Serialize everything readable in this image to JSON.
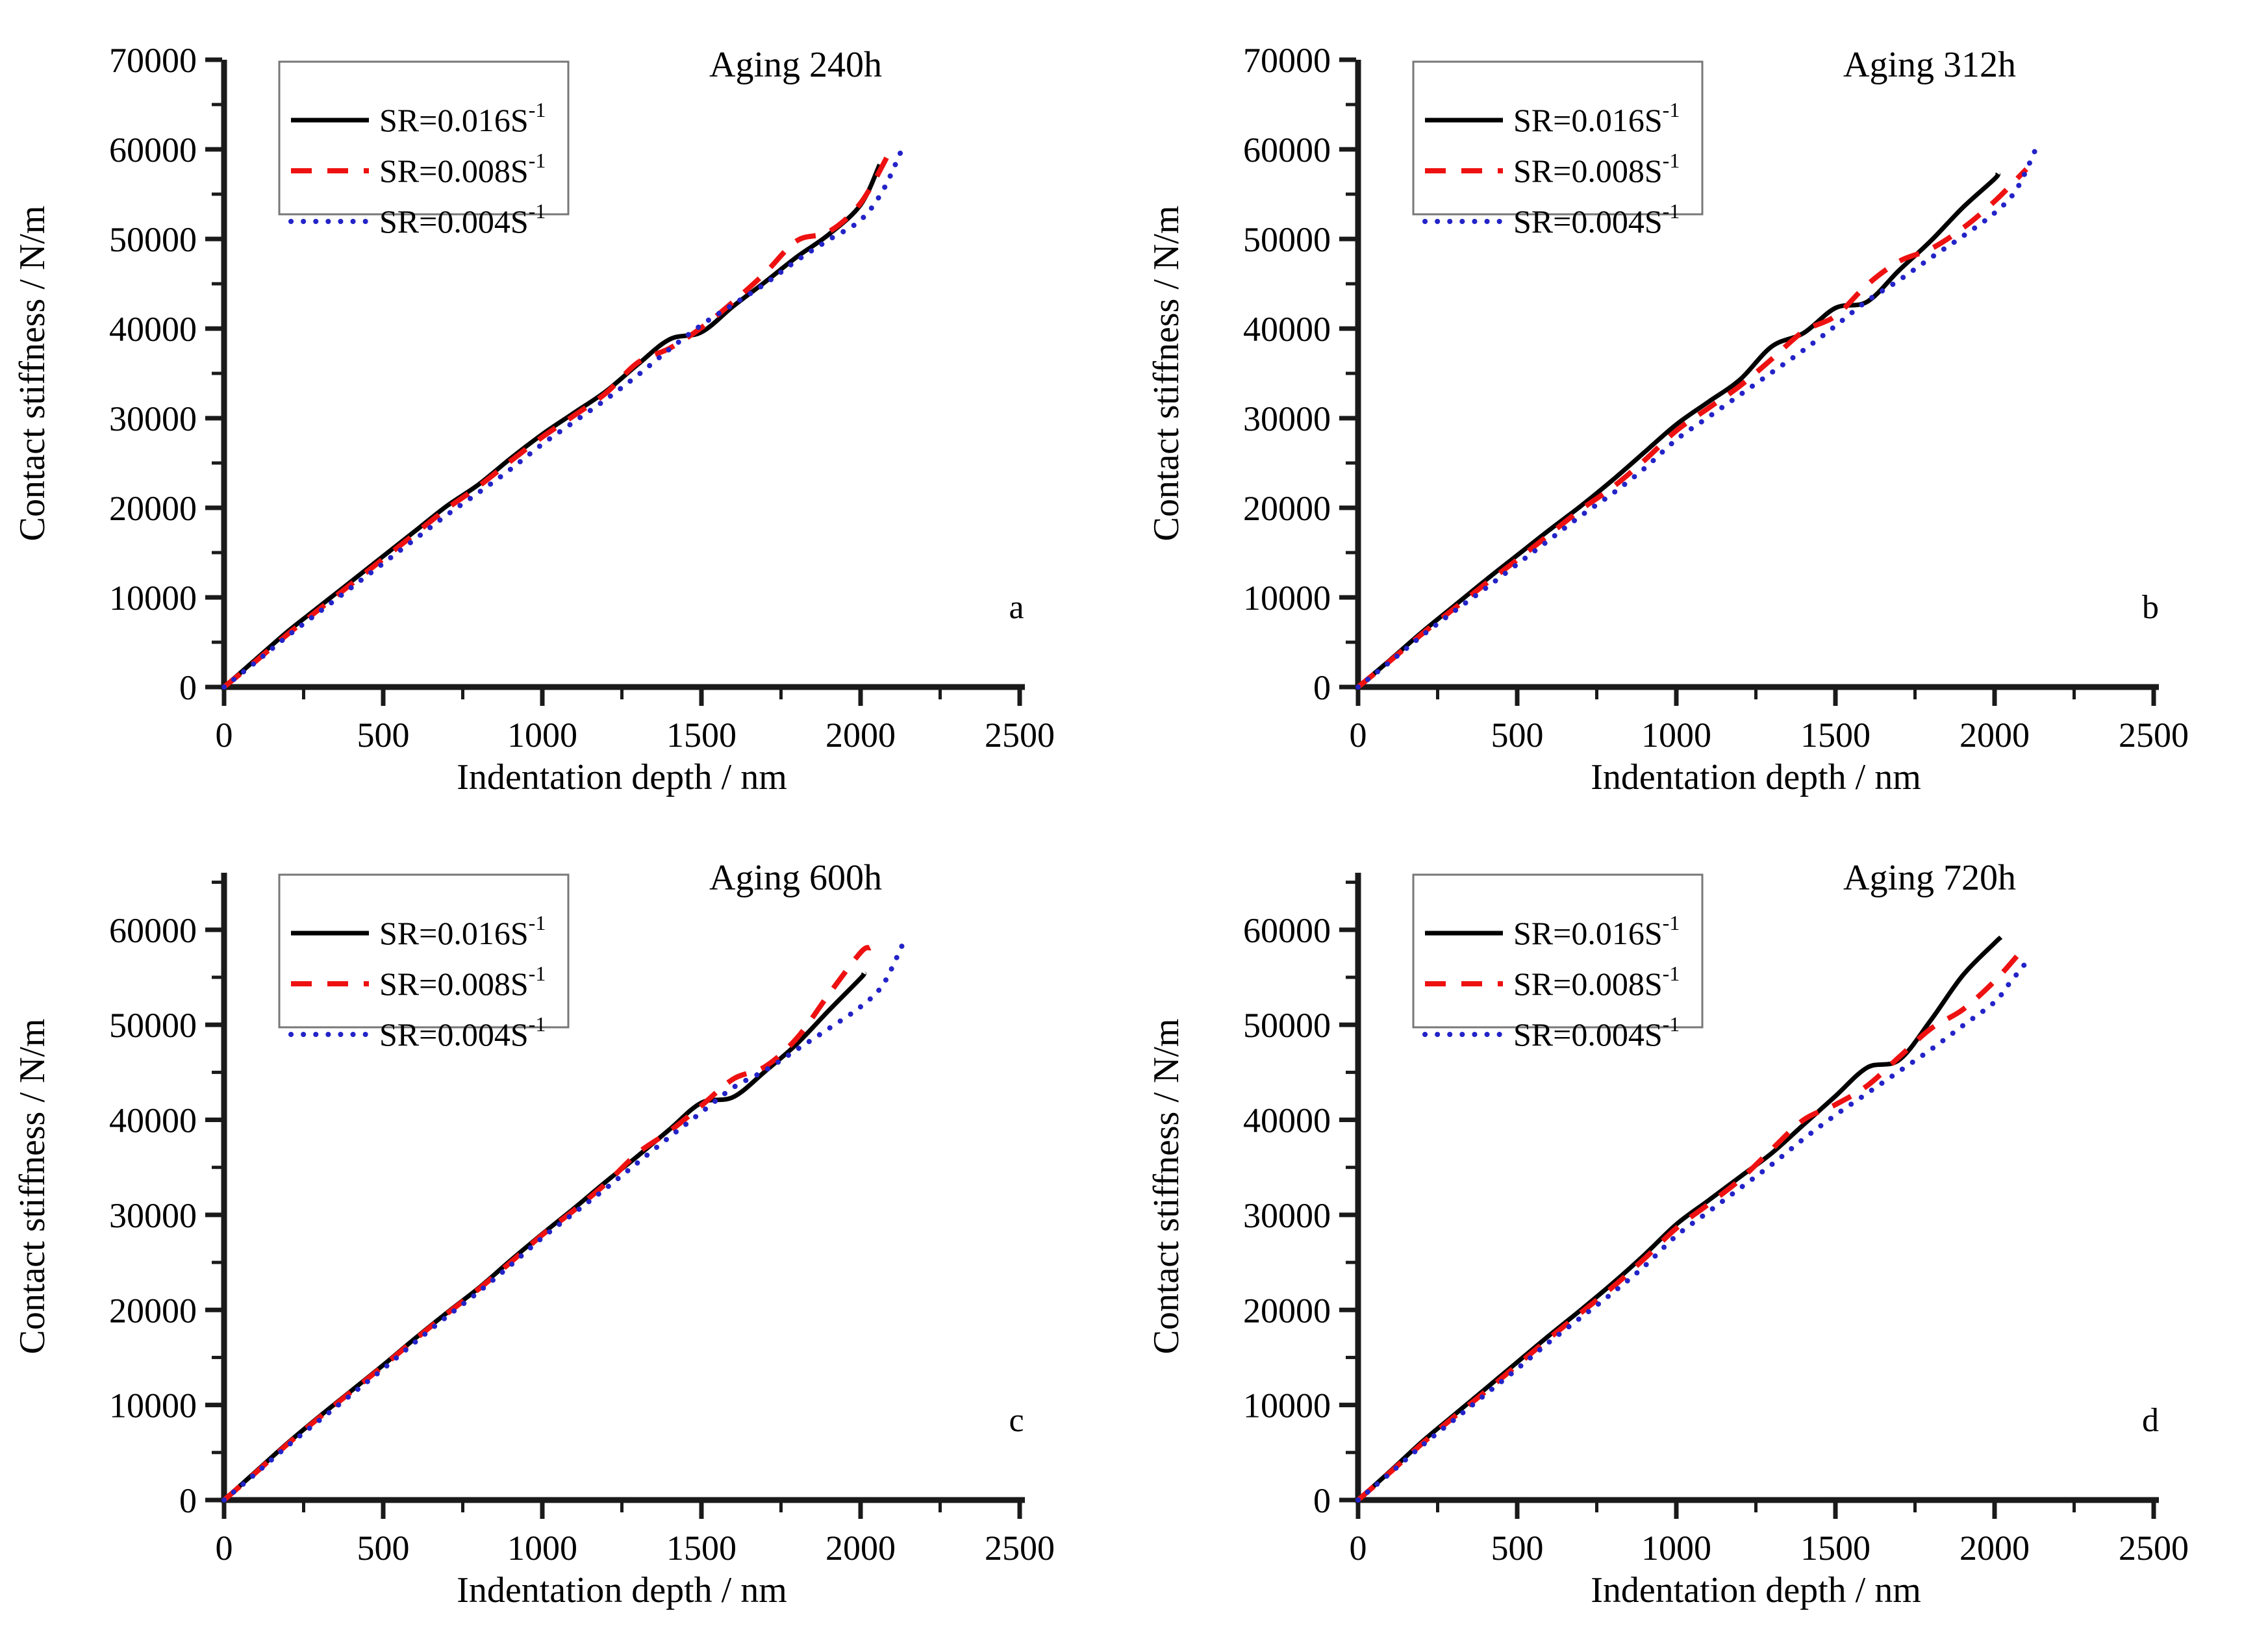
{
  "figure": {
    "background": "#ffffff",
    "axis_color": "#1a1a1a",
    "legend_border_color": "#777777"
  },
  "chart_data": [
    {
      "id": "a",
      "type": "line",
      "title": "Aging 240h",
      "panel_letter": "a",
      "xlabel": "Indentation depth / nm",
      "ylabel": "Contact stiffness / N/m",
      "xlim": [
        0,
        2500
      ],
      "ylim": [
        0,
        70000
      ],
      "x_major_step": 500,
      "x_minor_step": 250,
      "y_major_step": 10000,
      "y_minor_step": 5000,
      "y_label_max": 70000,
      "grid": false,
      "legend_position": "top-left",
      "series": [
        {
          "name": "SR=0.016S⁻¹",
          "label_base": "SR=0.016S",
          "label_sup": "-1",
          "color": "#000000",
          "line_style": "solid",
          "x": [
            0,
            100,
            200,
            300,
            400,
            500,
            600,
            700,
            800,
            900,
            1000,
            1100,
            1200,
            1300,
            1400,
            1500,
            1600,
            1700,
            1800,
            1900,
            2000,
            2060
          ],
          "y": [
            0,
            3100,
            6200,
            9000,
            11800,
            14600,
            17400,
            20200,
            22600,
            25500,
            28200,
            30600,
            33000,
            36000,
            38800,
            39600,
            42500,
            45200,
            48000,
            50500,
            53800,
            58300
          ]
        },
        {
          "name": "SR=0.008S⁻¹",
          "label_base": "SR=0.008S",
          "label_sup": "-1",
          "color": "#ee1111",
          "line_style": "dashed",
          "x": [
            0,
            100,
            200,
            300,
            400,
            500,
            600,
            700,
            800,
            900,
            1000,
            1100,
            1200,
            1300,
            1400,
            1500,
            1600,
            1700,
            1800,
            1900,
            2000,
            2090
          ],
          "y": [
            0,
            2900,
            5900,
            8700,
            11500,
            14300,
            17100,
            19900,
            22400,
            25200,
            27900,
            30300,
            32800,
            36200,
            37800,
            40100,
            43000,
            46200,
            49800,
            50800,
            54000,
            59600
          ]
        },
        {
          "name": "SR=0.004S⁻¹",
          "label_base": "SR=0.004S",
          "label_sup": "-1",
          "color": "#2323c8",
          "line_style": "dotted",
          "x": [
            0,
            100,
            200,
            300,
            400,
            500,
            600,
            700,
            800,
            900,
            1000,
            1100,
            1200,
            1300,
            1400,
            1500,
            1600,
            1700,
            1800,
            1900,
            2000,
            2070,
            2130
          ],
          "y": [
            0,
            2800,
            5700,
            8400,
            11100,
            13800,
            16500,
            19200,
            21700,
            24300,
            27100,
            29600,
            32100,
            34800,
            37700,
            40400,
            42700,
            45000,
            47600,
            49900,
            52100,
            55400,
            60000
          ]
        }
      ]
    },
    {
      "id": "b",
      "type": "line",
      "title": "Aging 312h",
      "panel_letter": "b",
      "xlabel": "Indentation depth / nm",
      "ylabel": "Contact stiffness / N/m",
      "xlim": [
        0,
        2500
      ],
      "ylim": [
        0,
        70000
      ],
      "x_major_step": 500,
      "x_minor_step": 250,
      "y_major_step": 10000,
      "y_minor_step": 5000,
      "y_label_max": 70000,
      "grid": false,
      "legend_position": "top-left",
      "series": [
        {
          "name": "SR=0.016S⁻¹",
          "label_base": "SR=0.016S",
          "label_sup": "-1",
          "color": "#000000",
          "line_style": "solid",
          "x": [
            0,
            100,
            200,
            300,
            400,
            500,
            600,
            700,
            800,
            900,
            1000,
            1100,
            1200,
            1300,
            1400,
            1500,
            1600,
            1700,
            1800,
            1900,
            2000,
            2010
          ],
          "y": [
            0,
            3000,
            6100,
            9000,
            11900,
            14700,
            17500,
            20200,
            23100,
            26200,
            29300,
            31800,
            34300,
            38000,
            39500,
            42300,
            43000,
            46500,
            49800,
            53500,
            56700,
            57300
          ]
        },
        {
          "name": "SR=0.008S⁻¹",
          "label_base": "SR=0.008S",
          "label_sup": "-1",
          "color": "#ee1111",
          "line_style": "dashed",
          "x": [
            0,
            100,
            200,
            300,
            400,
            500,
            600,
            700,
            800,
            900,
            1000,
            1100,
            1200,
            1300,
            1400,
            1500,
            1600,
            1700,
            1800,
            1900,
            2000,
            2100
          ],
          "y": [
            0,
            2900,
            5900,
            8700,
            11500,
            14200,
            17000,
            19800,
            22300,
            25300,
            28600,
            31100,
            33600,
            36600,
            39700,
            41400,
            44900,
            47500,
            48900,
            51200,
            54200,
            57800
          ]
        },
        {
          "name": "SR=0.004S⁻¹",
          "label_base": "SR=0.004S",
          "label_sup": "-1",
          "color": "#2323c8",
          "line_style": "dotted",
          "x": [
            0,
            100,
            200,
            300,
            400,
            500,
            600,
            700,
            800,
            900,
            1000,
            1100,
            1200,
            1300,
            1400,
            1500,
            1600,
            1700,
            1800,
            1900,
            2000,
            2070,
            2140
          ],
          "y": [
            0,
            2800,
            5700,
            8400,
            11000,
            13700,
            16400,
            19100,
            21600,
            24400,
            27600,
            30100,
            32600,
            35100,
            37600,
            40300,
            43100,
            45400,
            47900,
            50300,
            52900,
            55600,
            60900
          ]
        }
      ]
    },
    {
      "id": "c",
      "type": "line",
      "title": "Aging 600h",
      "panel_letter": "c",
      "xlabel": "Indentation depth / nm",
      "ylabel": "Contact stiffness / N/m",
      "xlim": [
        0,
        2500
      ],
      "ylim": [
        0,
        66000
      ],
      "x_major_step": 500,
      "x_minor_step": 250,
      "y_major_step": 10000,
      "y_minor_step": 5000,
      "y_label_max": 60000,
      "grid": false,
      "legend_position": "top-left",
      "series": [
        {
          "name": "SR=0.016S⁻¹",
          "label_base": "SR=0.016S",
          "label_sup": "-1",
          "color": "#000000",
          "line_style": "solid",
          "x": [
            0,
            100,
            200,
            300,
            400,
            500,
            600,
            700,
            800,
            900,
            1000,
            1100,
            1200,
            1300,
            1400,
            1500,
            1600,
            1700,
            1800,
            1900,
            2000,
            2010
          ],
          "y": [
            0,
            3000,
            6000,
            8800,
            11500,
            14200,
            17000,
            19700,
            22300,
            25200,
            28000,
            30700,
            33500,
            36200,
            39000,
            41800,
            42400,
            45100,
            48000,
            51500,
            54900,
            55400
          ]
        },
        {
          "name": "SR=0.008S⁻¹",
          "label_base": "SR=0.008S",
          "label_sup": "-1",
          "color": "#ee1111",
          "line_style": "dashed",
          "x": [
            0,
            100,
            200,
            300,
            400,
            500,
            600,
            700,
            800,
            900,
            1000,
            1100,
            1200,
            1300,
            1400,
            1500,
            1600,
            1700,
            1800,
            1900,
            2000,
            2030
          ],
          "y": [
            0,
            2900,
            5900,
            8700,
            11400,
            14100,
            16900,
            19600,
            22200,
            25000,
            27900,
            30500,
            33300,
            36500,
            38800,
            41500,
            44300,
            45600,
            48600,
            53200,
            57600,
            58100
          ]
        },
        {
          "name": "SR=0.004S⁻¹",
          "label_base": "SR=0.004S",
          "label_sup": "-1",
          "color": "#2323c8",
          "line_style": "dotted",
          "x": [
            0,
            100,
            200,
            300,
            400,
            500,
            600,
            700,
            800,
            900,
            1000,
            1100,
            1200,
            1300,
            1400,
            1500,
            1600,
            1700,
            1800,
            1900,
            2000,
            2070,
            2130
          ],
          "y": [
            0,
            2800,
            5700,
            8400,
            11100,
            13800,
            16600,
            19300,
            21900,
            24700,
            27600,
            30200,
            32800,
            35500,
            38200,
            40800,
            43400,
            45200,
            47400,
            49600,
            51900,
            54200,
            58300
          ]
        }
      ]
    },
    {
      "id": "d",
      "type": "line",
      "title": "Aging 720h",
      "panel_letter": "d",
      "xlabel": "Indentation depth / nm",
      "ylabel": "Contact stiffness / N/m",
      "xlim": [
        0,
        2500
      ],
      "ylim": [
        0,
        66000
      ],
      "x_major_step": 500,
      "x_minor_step": 250,
      "y_major_step": 10000,
      "y_minor_step": 5000,
      "y_label_max": 60000,
      "grid": false,
      "legend_position": "top-left",
      "series": [
        {
          "name": "SR=0.016S⁻¹",
          "label_base": "SR=0.016S",
          "label_sup": "-1",
          "color": "#000000",
          "line_style": "solid",
          "x": [
            0,
            100,
            200,
            300,
            400,
            500,
            600,
            700,
            800,
            900,
            1000,
            1100,
            1200,
            1300,
            1400,
            1500,
            1600,
            1700,
            1800,
            1900,
            2000,
            2020
          ],
          "y": [
            0,
            3000,
            6100,
            8900,
            11700,
            14500,
            17300,
            20000,
            22800,
            25800,
            29000,
            31500,
            34000,
            36500,
            39500,
            42500,
            45500,
            46300,
            50500,
            55200,
            58600,
            59200
          ]
        },
        {
          "name": "SR=0.008S⁻¹",
          "label_base": "SR=0.008S",
          "label_sup": "-1",
          "color": "#ee1111",
          "line_style": "dashed",
          "x": [
            0,
            100,
            200,
            300,
            400,
            500,
            600,
            700,
            800,
            900,
            1000,
            1100,
            1200,
            1300,
            1400,
            1500,
            1600,
            1700,
            1800,
            1900,
            2000,
            2080
          ],
          "y": [
            0,
            2900,
            5900,
            8700,
            11400,
            14200,
            17000,
            19700,
            22400,
            25400,
            28600,
            31100,
            33700,
            36900,
            40000,
            41600,
            43600,
            46600,
            49600,
            51600,
            54600,
            57600
          ]
        },
        {
          "name": "SR=0.004S⁻¹",
          "label_base": "SR=0.004S",
          "label_sup": "-1",
          "color": "#2323c8",
          "line_style": "dotted",
          "x": [
            0,
            100,
            200,
            300,
            400,
            500,
            600,
            700,
            800,
            900,
            1000,
            1100,
            1200,
            1300,
            1400,
            1500,
            1600,
            1700,
            1800,
            1900,
            2000,
            2050,
            2110
          ],
          "y": [
            0,
            2800,
            5700,
            8400,
            11100,
            13800,
            16600,
            19200,
            21800,
            24600,
            27800,
            30300,
            32800,
            35300,
            38000,
            40500,
            42800,
            45100,
            47400,
            49900,
            52400,
            54500,
            57000
          ]
        }
      ]
    }
  ]
}
